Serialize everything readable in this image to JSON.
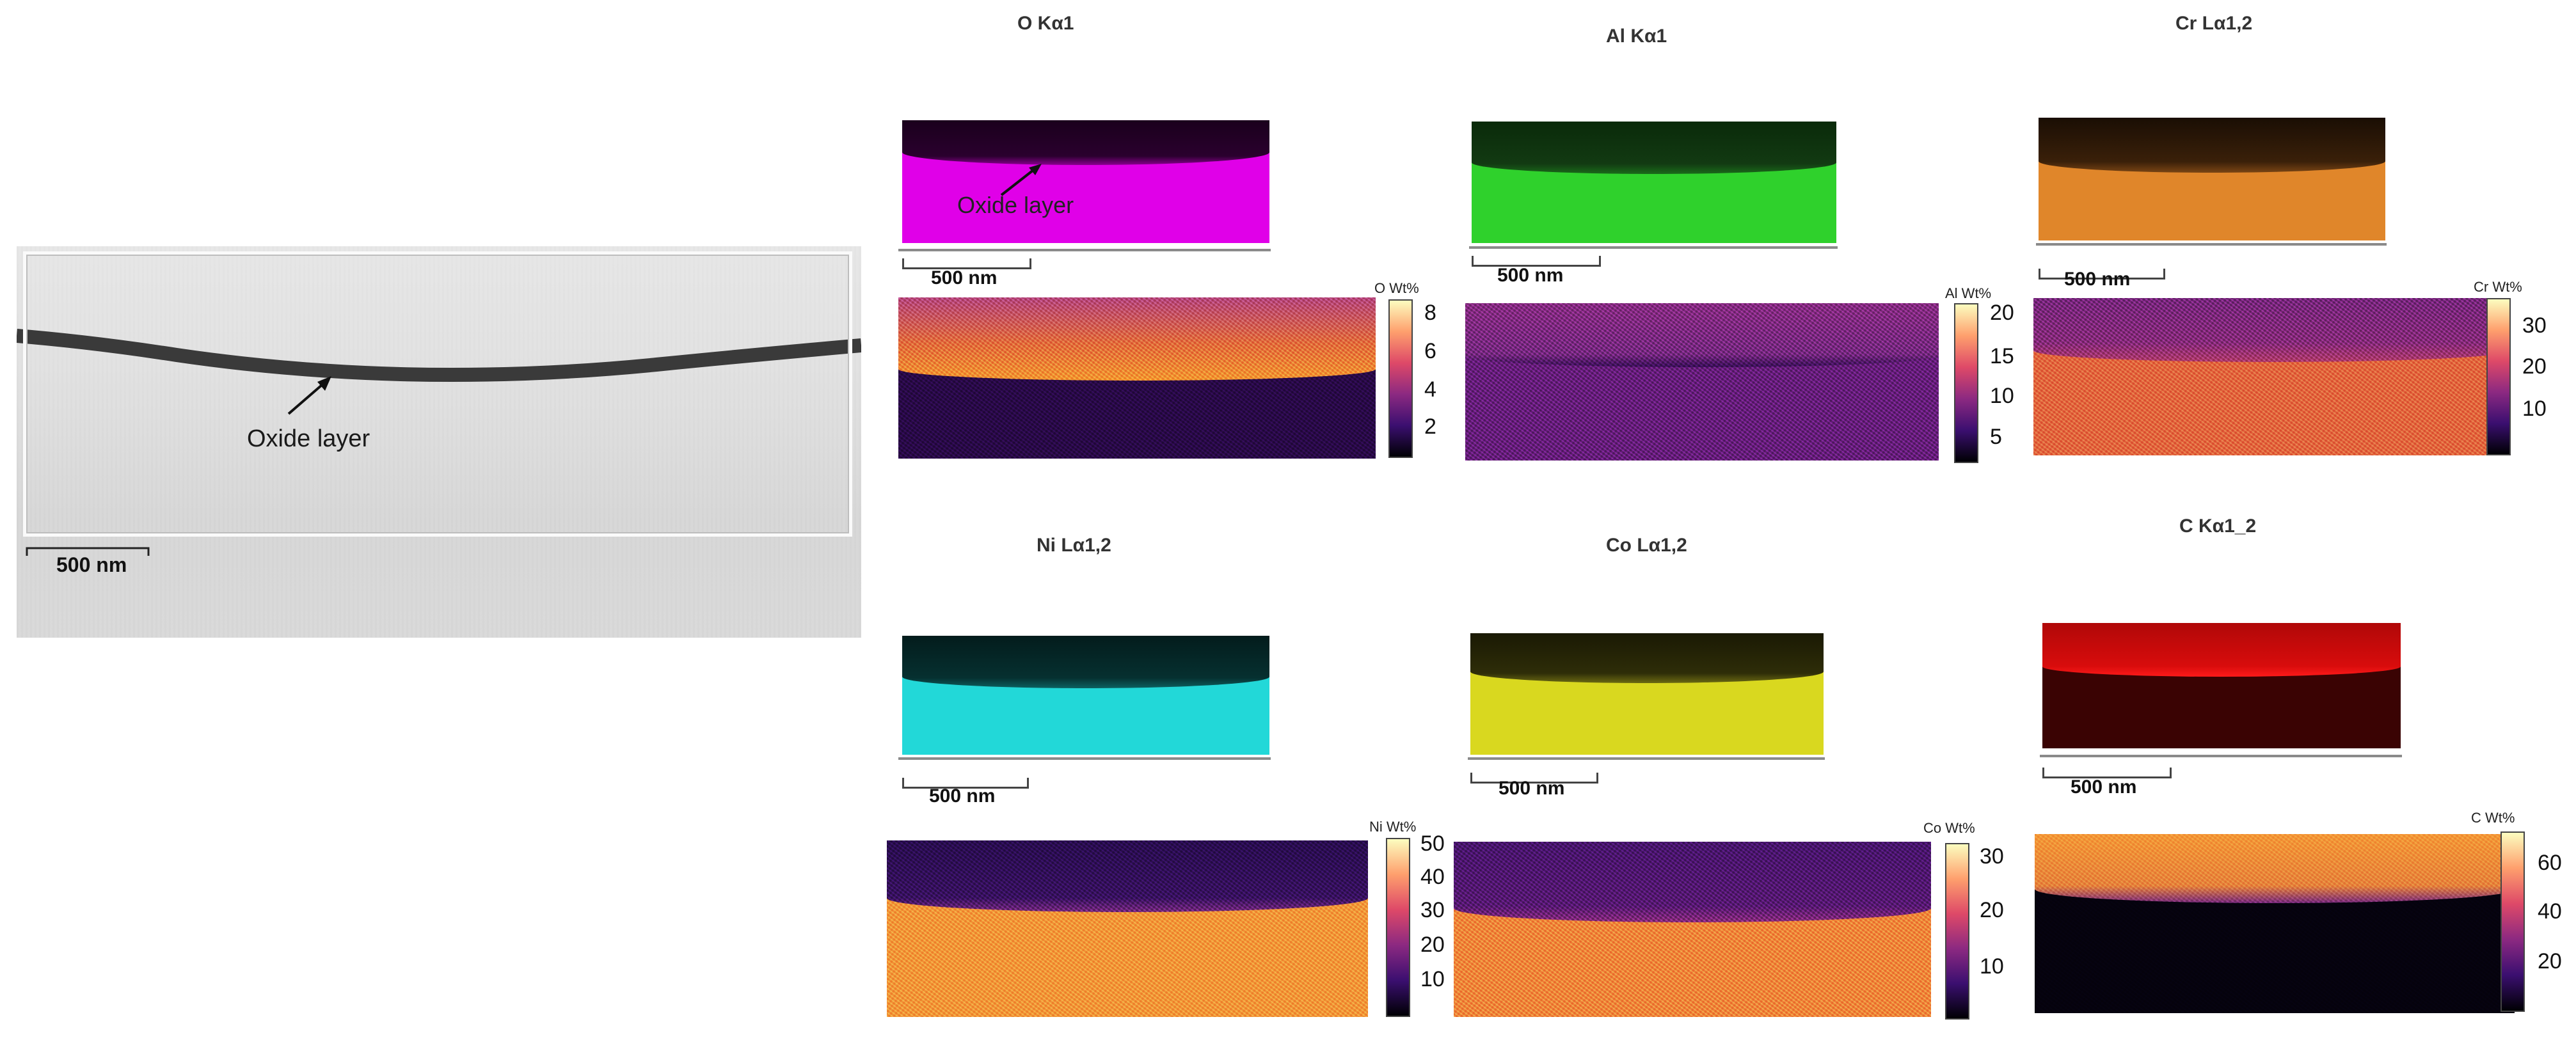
{
  "tem": {
    "label": "Oxide layer",
    "scale": "500 nm"
  },
  "panels": [
    {
      "id": "o",
      "title": "O Kα1",
      "map_color": "#e000e8",
      "dark_color": "#1a001c",
      "scale": "500 nm",
      "annotation": "Oxide layer",
      "unit": "O Wt%",
      "ticks": [
        "8",
        "6",
        "4",
        "2"
      ]
    },
    {
      "id": "al",
      "title": "Al Kα1",
      "map_color": "#2fd12c",
      "dark_color": "#0a2a0a",
      "scale": "500 nm",
      "unit": "Al Wt%",
      "ticks": [
        "20",
        "15",
        "10",
        "5"
      ]
    },
    {
      "id": "cr",
      "title": "Cr Lα1,2",
      "map_color": "#e0862a",
      "dark_color": "#2a1607",
      "scale": "500 nm",
      "unit": "Cr Wt%",
      "ticks": [
        "30",
        "20",
        "10"
      ]
    },
    {
      "id": "ni",
      "title": "Ni Lα1,2",
      "map_color": "#22d8d8",
      "dark_color": "#031c1c",
      "scale": "500 nm",
      "unit": "Ni Wt%",
      "ticks": [
        "50",
        "40",
        "30",
        "20",
        "10"
      ]
    },
    {
      "id": "co",
      "title": "Co Lα1,2",
      "map_color": "#d9d81f",
      "dark_color": "#1e1d04",
      "scale": "500 nm",
      "unit": "Co Wt%",
      "ticks": [
        "30",
        "20",
        "10"
      ]
    },
    {
      "id": "c",
      "title": "C Kα1_2",
      "map_color": "#3a0303",
      "dark_color": "#d00b0b",
      "scale": "500 nm",
      "unit": "C Wt%",
      "ticks": [
        "60",
        "40",
        "20"
      ]
    }
  ],
  "colors": {
    "heat_low": "#2a0a4a",
    "heat_high": "#f79a2e"
  }
}
